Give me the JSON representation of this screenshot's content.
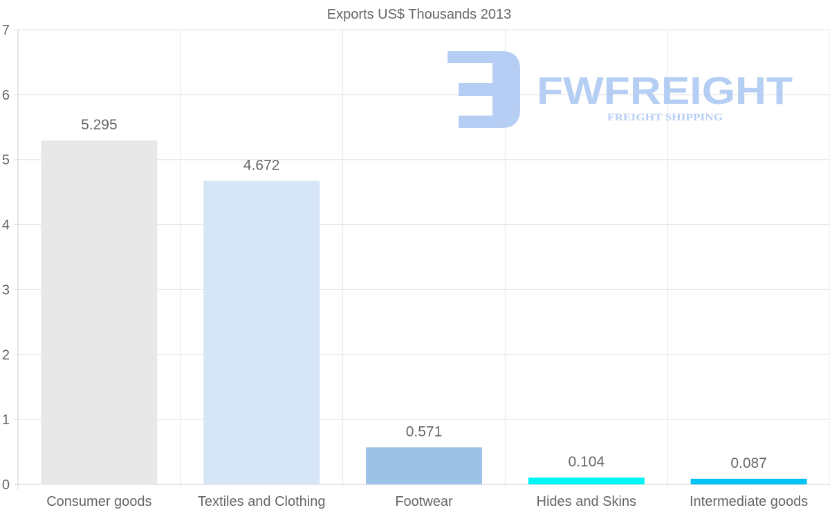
{
  "chart_data": {
    "type": "bar",
    "title": "Exports US$ Thousands 2013",
    "xlabel": "",
    "ylabel": "",
    "ylim": [
      0,
      7
    ],
    "yticks": [
      "0",
      "1",
      "2",
      "3",
      "4",
      "5",
      "6",
      "7"
    ],
    "grid": true,
    "categories": [
      "Consumer goods",
      "Textiles and Clothing",
      "Footwear",
      "Hides and Skins",
      "Intermediate goods"
    ],
    "values": [
      5.295,
      4.672,
      0.571,
      0.104,
      0.087
    ],
    "value_labels": [
      "5.295",
      "4.672",
      "0.571",
      "0.104",
      "0.087"
    ],
    "colors": [
      "#e8e8e8",
      "#d6e6f8",
      "#9cc3e6",
      "#00f5f5",
      "#00c2f5"
    ]
  },
  "watermark": {
    "brand": "FWFREIGHT",
    "tagline": "FREIGHT SHIPPING",
    "color": "#a9c6f2"
  }
}
